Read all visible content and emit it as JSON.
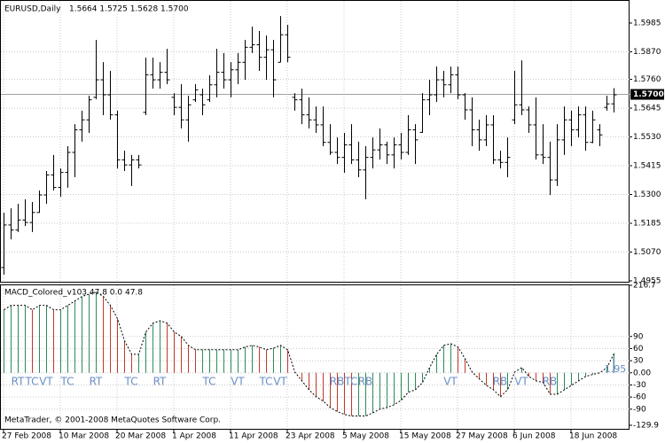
{
  "header": {
    "symbol": "EURUSD,Daily",
    "quote": "1.5664 1.5725 1.5628 1.5700"
  },
  "footer": "MetaTrader, © 2001-2008 MetaQuotes Software Corp.",
  "chart_data": [
    {
      "type": "ohlc",
      "categories": [
        "27 Feb 2008",
        null,
        null,
        null,
        null,
        null,
        null,
        null,
        "10 Mar 2008",
        null,
        null,
        null,
        null,
        null,
        null,
        null,
        "20 Mar 2008",
        null,
        null,
        null,
        null,
        null,
        null,
        null,
        "1 Apr 2008",
        null,
        null,
        null,
        null,
        null,
        null,
        null,
        "11 Apr 2008",
        null,
        null,
        null,
        null,
        null,
        null,
        null,
        "23 Apr 2008",
        null,
        null,
        null,
        null,
        null,
        null,
        null,
        "5 May 2008",
        null,
        null,
        null,
        null,
        null,
        null,
        null,
        "15 May 2008",
        null,
        null,
        null,
        null,
        null,
        null,
        null,
        "27 May 2008",
        null,
        null,
        null,
        null,
        null,
        null,
        null,
        "6 Jun 2008",
        null,
        null,
        null,
        null,
        null,
        null,
        null,
        "18 Jun 2008",
        null,
        null,
        null,
        null,
        null,
        null
      ],
      "open": [
        1.501,
        1.518,
        1.516,
        1.52,
        1.519,
        1.523,
        1.53,
        1.538,
        1.533,
        1.539,
        1.547,
        1.556,
        1.56,
        1.569,
        1.576,
        1.57,
        1.562,
        1.544,
        1.542,
        1.544,
        1.563,
        1.578,
        1.576,
        1.579,
        1.569,
        1.565,
        1.56,
        1.568,
        1.57,
        1.568,
        1.574,
        1.579,
        1.576,
        1.58,
        1.583,
        1.589,
        1.59,
        1.585,
        1.588,
        1.583,
        1.594,
        1.569,
        1.568,
        1.562,
        1.56,
        1.558,
        1.551,
        1.547,
        1.545,
        1.55,
        1.544,
        1.54,
        1.545,
        1.548,
        1.55,
        1.546,
        1.55,
        1.547,
        1.556,
        1.555,
        1.568,
        1.57,
        1.576,
        1.574,
        1.578,
        1.57,
        1.564,
        1.556,
        1.552,
        1.558,
        1.544,
        1.543,
        1.56,
        1.566,
        1.564,
        1.558,
        1.546,
        1.545,
        1.536,
        1.552,
        1.56,
        1.556,
        1.562,
        1.551,
        1.556,
        1.565,
        1.5664
      ],
      "high": [
        1.5227,
        1.5245,
        1.5263,
        1.5281,
        1.527,
        1.5316,
        1.5394,
        1.5458,
        1.5404,
        1.5493,
        1.5581,
        1.5635,
        1.5695,
        1.5918,
        1.5829,
        1.5794,
        1.5635,
        1.5475,
        1.5458,
        1.5458,
        1.5847,
        1.5847,
        1.5829,
        1.5882,
        1.5705,
        1.5741,
        1.5695,
        1.5741,
        1.5723,
        1.5776,
        1.5882,
        1.5865,
        1.5829,
        1.5865,
        1.5918,
        1.5971,
        1.5953,
        1.5935,
        1.5918,
        1.6013,
        1.5978,
        1.5705,
        1.5723,
        1.5688,
        1.5652,
        1.5652,
        1.5581,
        1.5528,
        1.5546,
        1.5581,
        1.5511,
        1.5493,
        1.5528,
        1.5564,
        1.5511,
        1.5528,
        1.5546,
        1.5617,
        1.5581,
        1.5705,
        1.5758,
        1.5811,
        1.5794,
        1.5811,
        1.5811,
        1.5705,
        1.5688,
        1.5599,
        1.5617,
        1.5617,
        1.5475,
        1.5528,
        1.5794,
        1.5836,
        1.5652,
        1.5688,
        1.5581,
        1.5511,
        1.5581,
        1.5652,
        1.5635,
        1.5652,
        1.5652,
        1.5635,
        1.5581,
        1.5695,
        1.5725
      ],
      "low": [
        1.498,
        1.5121,
        1.515,
        1.5174,
        1.515,
        1.5227,
        1.5263,
        1.5316,
        1.5291,
        1.5327,
        1.5369,
        1.5511,
        1.5546,
        1.5681,
        1.5617,
        1.5599,
        1.5404,
        1.5394,
        1.5334,
        1.5404,
        1.5617,
        1.5723,
        1.5723,
        1.5741,
        1.5617,
        1.5564,
        1.5511,
        1.567,
        1.5617,
        1.567,
        1.5688,
        1.5723,
        1.5688,
        1.5741,
        1.5758,
        1.5865,
        1.5794,
        1.5758,
        1.5688,
        1.5829,
        1.5829,
        1.5635,
        1.5581,
        1.5564,
        1.5546,
        1.5493,
        1.5458,
        1.5422,
        1.5387,
        1.5422,
        1.5369,
        1.5281,
        1.5404,
        1.544,
        1.5422,
        1.5404,
        1.544,
        1.5458,
        1.5422,
        1.5546,
        1.5617,
        1.567,
        1.5688,
        1.5705,
        1.5681,
        1.5599,
        1.5493,
        1.5475,
        1.5493,
        1.5422,
        1.5404,
        1.5369,
        1.5581,
        1.5617,
        1.5546,
        1.544,
        1.5422,
        1.5298,
        1.5334,
        1.5458,
        1.5493,
        1.5528,
        1.5475,
        1.5505,
        1.5493,
        1.5635,
        1.5628
      ],
      "close": [
        1.518,
        1.516,
        1.52,
        1.519,
        1.523,
        1.53,
        1.538,
        1.533,
        1.539,
        1.547,
        1.556,
        1.56,
        1.568,
        1.576,
        1.57,
        1.562,
        1.544,
        1.542,
        1.544,
        1.542,
        1.578,
        1.576,
        1.579,
        1.576,
        1.565,
        1.56,
        1.566,
        1.572,
        1.566,
        1.574,
        1.579,
        1.576,
        1.58,
        1.583,
        1.589,
        1.59,
        1.585,
        1.588,
        1.576,
        1.594,
        1.585,
        1.568,
        1.562,
        1.56,
        1.558,
        1.551,
        1.547,
        1.545,
        1.55,
        1.544,
        1.54,
        1.545,
        1.548,
        1.55,
        1.546,
        1.55,
        1.547,
        1.556,
        1.552,
        1.568,
        1.57,
        1.576,
        1.574,
        1.578,
        1.57,
        1.564,
        1.556,
        1.552,
        1.558,
        1.544,
        1.543,
        1.545,
        1.566,
        1.564,
        1.558,
        1.546,
        1.545,
        1.536,
        1.552,
        1.56,
        1.556,
        1.562,
        1.551,
        1.56,
        1.554,
        1.5664,
        1.57
      ],
      "color": "#000000",
      "ylim": [
        1.4955,
        1.607
      ],
      "yticks": [
        1.4955,
        {
          "value": 1.507,
          "label": "1.5070"
        },
        1.5185,
        {
          "value": 1.53,
          "label": "1.5300"
        },
        1.5415,
        {
          "value": 1.553,
          "label": "1.5530"
        },
        1.5645,
        {
          "value": 1.576,
          "label": "1.5760"
        },
        {
          "value": 1.587,
          "label": "1.5870"
        },
        1.5985
      ],
      "current_price": {
        "value": 1.57,
        "label": "1.5700"
      },
      "grid": true
    },
    {
      "type": "bar",
      "title": "MACD_Colored_v103 47.8 0.0 47.8",
      "values": [
        156,
        167,
        167,
        167,
        156,
        167,
        167,
        156,
        156,
        167,
        178,
        189,
        195,
        200,
        189,
        167,
        134,
        79,
        46,
        46,
        101,
        123,
        129,
        123,
        101,
        90,
        68,
        57,
        57,
        57,
        57,
        57,
        57,
        57,
        64,
        68,
        64,
        57,
        61,
        68,
        57,
        2,
        -20,
        -42,
        -59,
        -70,
        -86,
        -96,
        -103,
        -107,
        -107,
        -107,
        -99,
        -90,
        -86,
        -79,
        -68,
        -48,
        -42,
        -24,
        13,
        46,
        68,
        72,
        64,
        35,
        2,
        -15,
        -31,
        -42,
        -59,
        -42,
        2,
        13,
        -9,
        -20,
        -24,
        -53,
        -53,
        -42,
        -31,
        -20,
        -9,
        -4,
        0,
        13,
        47.8
      ],
      "signals": [
        null,
        null,
        "RT",
        null,
        "TC",
        null,
        "VT",
        null,
        null,
        "TC",
        null,
        null,
        null,
        "RT",
        null,
        null,
        null,
        null,
        "TC",
        null,
        null,
        null,
        "RT",
        null,
        null,
        null,
        null,
        null,
        null,
        "TC",
        null,
        null,
        null,
        "VT",
        null,
        null,
        null,
        "TC",
        null,
        "VT",
        null,
        null,
        null,
        null,
        null,
        null,
        null,
        "RB",
        null,
        "TC",
        null,
        "RB",
        null,
        null,
        null,
        null,
        null,
        null,
        null,
        null,
        null,
        null,
        null,
        "VT",
        null,
        null,
        null,
        null,
        null,
        null,
        "RB",
        null,
        null,
        "VT",
        null,
        null,
        null,
        "RB",
        null,
        null,
        null,
        null,
        null,
        null,
        null,
        null,
        null
      ],
      "annotation": "1.95",
      "up_color": "#2e8b57",
      "down_color": "#c0392b",
      "line_color": "#000000",
      "signal_color": "#6a8fc4",
      "ylim": [
        -129.9,
        216.7
      ],
      "yticks": [
        216.7,
        90,
        60,
        30,
        {
          "value": 0,
          "label": "0.00"
        },
        -30,
        -60,
        -90,
        -129.9
      ],
      "grid": true
    }
  ]
}
